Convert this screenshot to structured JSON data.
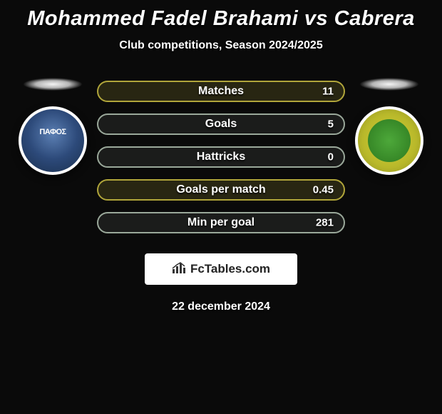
{
  "header": {
    "title": "Mohammed Fadel Brahami vs Cabrera",
    "subtitle": "Club competitions, Season 2024/2025"
  },
  "team_left": {
    "badge_name": "pafos-badge",
    "inner_text": "ΠΑΦΟΣ",
    "badge_border": "#ffffff"
  },
  "team_right": {
    "badge_name": "aek-larnaca-badge",
    "badge_border": "#ffffff"
  },
  "stats": [
    {
      "label": "Matches",
      "value": "11",
      "border": "#b0a53a",
      "bg": "rgba(176,165,58,0.18)"
    },
    {
      "label": "Goals",
      "value": "5",
      "border": "#9aa89a",
      "bg": "rgba(154,168,154,0.12)"
    },
    {
      "label": "Hattricks",
      "value": "0",
      "border": "#9aa89a",
      "bg": "rgba(154,168,154,0.12)"
    },
    {
      "label": "Goals per match",
      "value": "0.45",
      "border": "#b0a53a",
      "bg": "rgba(176,165,58,0.18)"
    },
    {
      "label": "Min per goal",
      "value": "281",
      "border": "#9aa89a",
      "bg": "rgba(154,168,154,0.12)"
    }
  ],
  "brand": {
    "text": "FcTables.com",
    "icon_name": "bar-chart-icon",
    "bg": "#ffffff",
    "text_color": "#222222"
  },
  "footer": {
    "date": "22 december 2024"
  },
  "theme": {
    "page_bg": "#0a0a0a",
    "title_color": "#ffffff",
    "pill_text_color": "#ffffff"
  }
}
